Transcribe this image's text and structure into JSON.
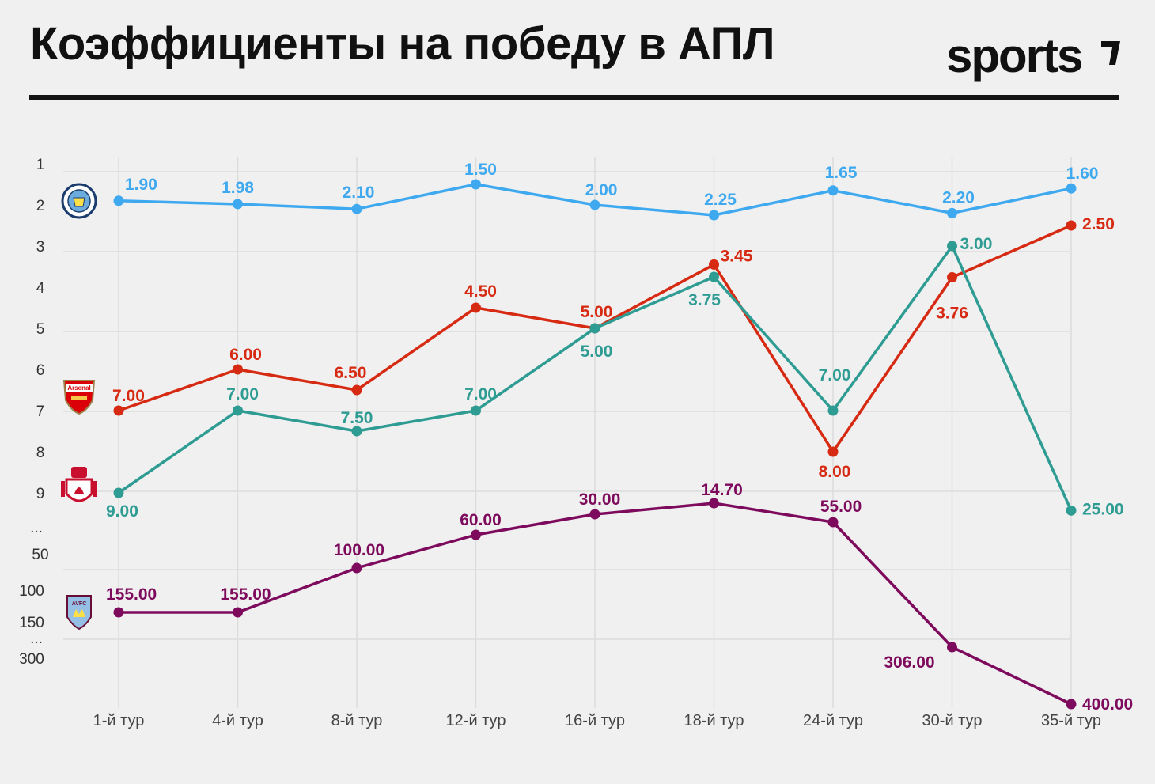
{
  "header": {
    "title": "Коэффициенты на победу в АПЛ",
    "logo_text": "sports"
  },
  "colors": {
    "background": "#f0f0f0",
    "man_city": "#3fa9f0",
    "arsenal": "#d62a12",
    "liverpool": "#2e9c93",
    "aston_villa": "#7d0a5c",
    "grid": "#dcdcdc"
  },
  "chart_data": {
    "type": "line",
    "title": "Коэффициенты на победу в АПЛ",
    "categories": [
      "1-й тур",
      "4-й тур",
      "8-й тур",
      "12-й тур",
      "16-й тур",
      "18-й тур",
      "24-й тур",
      "30-й тур",
      "35-й тур"
    ],
    "y_axis_labels": [
      "1",
      "2",
      "3",
      "4",
      "5",
      "6",
      "7",
      "8",
      "9",
      "...",
      "50",
      "100",
      "150",
      "...",
      "300"
    ],
    "y_axis_inverted": true,
    "y_axis_broken": true,
    "grid": true,
    "series": [
      {
        "key": "man_city",
        "icon": "man-city-crest-icon",
        "color": "#3fa9f0",
        "values": [
          1.9,
          1.98,
          2.1,
          1.5,
          2.0,
          2.25,
          1.65,
          2.2,
          1.6
        ],
        "labels": [
          "1.90",
          "1.98",
          "2.10",
          "1.50",
          "2.00",
          "2.25",
          "1.65",
          "2.20",
          "1.60"
        ]
      },
      {
        "key": "arsenal",
        "icon": "arsenal-crest-icon",
        "crest_text": "Arsenal",
        "color": "#d62a12",
        "values": [
          7.0,
          6.0,
          6.5,
          4.5,
          5.0,
          3.45,
          8.0,
          3.76,
          2.5
        ],
        "labels": [
          "7.00",
          "6.00",
          "6.50",
          "4.50",
          "5.00",
          "3.45",
          "8.00",
          "3.76",
          "2.50"
        ]
      },
      {
        "key": "liverpool",
        "icon": "liverpool-crest-icon",
        "color": "#2e9c93",
        "values": [
          9.0,
          7.0,
          7.5,
          7.0,
          5.0,
          3.75,
          7.0,
          3.0,
          25.0
        ],
        "labels": [
          "9.00",
          "7.00",
          "7.50",
          "7.00",
          "5.00",
          "3.75",
          "7.00",
          "3.00",
          "25.00"
        ]
      },
      {
        "key": "aston_villa",
        "icon": "aston-villa-crest-icon",
        "crest_text": "AVFC",
        "color": "#7d0a5c",
        "values": [
          155.0,
          155.0,
          100.0,
          60.0,
          30.0,
          14.7,
          55.0,
          306.0,
          400.0
        ],
        "labels": [
          "155.00",
          "155.00",
          "100.00",
          "60.00",
          "30.00",
          "14.70",
          "55.00",
          "306.00",
          "400.00"
        ]
      }
    ]
  }
}
